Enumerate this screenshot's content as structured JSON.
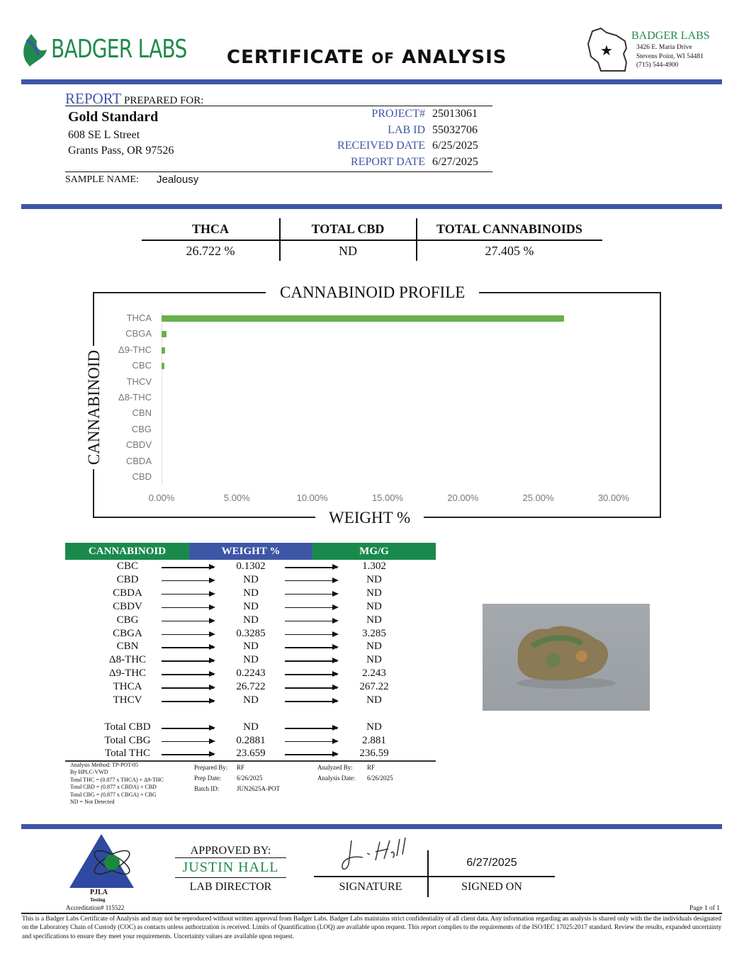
{
  "header": {
    "brand": "BADGER LABS",
    "title_a": "CERTIFICATE ",
    "title_of": "OF",
    "title_b": " ANALYSIS",
    "lab_name": "BADGER LABS",
    "lab_address1": "3426 E. Maria Drive",
    "lab_address2": "Stevens Point, WI 54481",
    "lab_phone": "(715) 544-4900"
  },
  "report": {
    "report_word": "REPORT",
    "prepared_for": " PREPARED FOR:",
    "client_name": "Gold Standard",
    "client_address1": "608 SE L Street",
    "client_address2": "Grants Pass, OR 97526",
    "fields": [
      {
        "label": "PROJECT#",
        "value": "25013061"
      },
      {
        "label": "LAB ID",
        "value": "55032706"
      },
      {
        "label": "RECEIVED DATE",
        "value": "6/25/2025"
      },
      {
        "label": "REPORT DATE",
        "value": "6/27/2025"
      }
    ],
    "sample_label": "SAMPLE NAME:",
    "sample_name": "Jealousy"
  },
  "summary": {
    "headers": [
      "THCA",
      "TOTAL CBD",
      "TOTAL CANNABINOIDS"
    ],
    "values": [
      "26.722 %",
      "ND",
      "27.405 %"
    ]
  },
  "chart_data": {
    "type": "bar",
    "orientation": "horizontal",
    "title": "CANNABINOID PROFILE",
    "xlabel": "WEIGHT %",
    "ylabel": "CANNABINOID",
    "categories": [
      "THCA",
      "CBGA",
      "Δ9-THC",
      "CBC",
      "THCV",
      "Δ8-THC",
      "CBN",
      "CBG",
      "CBDV",
      "CBDA",
      "CBD"
    ],
    "values": [
      26.722,
      0.3285,
      0.2243,
      0.1302,
      0,
      0,
      0,
      0,
      0,
      0,
      0
    ],
    "xlim": [
      0,
      30
    ],
    "xticks": [
      "0.00%",
      "5.00%",
      "10.00%",
      "15.00%",
      "20.00%",
      "25.00%",
      "30.00%"
    ],
    "grid": false,
    "color": "#6ab04c"
  },
  "table": {
    "headers": [
      "CANNABINOID",
      "WEIGHT %",
      "MG/G"
    ],
    "header_colors": [
      "#1a8a4c",
      "#3d56a6",
      "#1a8a4c"
    ],
    "rows": [
      [
        "CBC",
        "0.1302",
        "1.302"
      ],
      [
        "CBD",
        "ND",
        "ND"
      ],
      [
        "CBDA",
        "ND",
        "ND"
      ],
      [
        "CBDV",
        "ND",
        "ND"
      ],
      [
        "CBG",
        "ND",
        "ND"
      ],
      [
        "CBGA",
        "0.3285",
        "3.285"
      ],
      [
        "CBN",
        "ND",
        "ND"
      ],
      [
        "Δ8-THC",
        "ND",
        "ND"
      ],
      [
        "Δ9-THC",
        "0.2243",
        "2.243"
      ],
      [
        "THCA",
        "26.722",
        "267.22"
      ],
      [
        "THCV",
        "ND",
        "ND"
      ]
    ],
    "totals": [
      [
        "Total CBD",
        "ND",
        "ND"
      ],
      [
        "Total CBG",
        "0.2881",
        "2.881"
      ],
      [
        "Total THC",
        "23.659",
        "236.59"
      ]
    ]
  },
  "notes": {
    "method": [
      "Analysis Method: TP-POT-05",
      "By HPLC-VWD",
      "Total THC = (0.877 x  THCA) + Δ9-THC",
      "Total CBD = (0.877 x  CBDA) + CBD",
      "Total CBG = (0.877 x  CBGA) + CBG",
      "ND = Not Detected"
    ],
    "prep": [
      {
        "label": "Prepared By:",
        "value": "RF"
      },
      {
        "label": "Prep Date:",
        "value": "6/26/2025"
      },
      {
        "label": "Batch ID:",
        "value": "JUN2625A-POT"
      }
    ],
    "analysis": [
      {
        "label": "Analyzed By:",
        "value": "RF"
      },
      {
        "label": "Analysis Date:",
        "value": "6/26/2025"
      }
    ]
  },
  "approval": {
    "pjla": "PJLA",
    "testing": "Testing",
    "accreditation": "Accreditation# 115522",
    "approved_by": "APPROVED BY:",
    "name": "JUSTIN HALL",
    "role": "LAB DIRECTOR",
    "signature_label": "SIGNATURE",
    "signed_date": "6/27/2025",
    "signed_on_label": "SIGNED ON"
  },
  "footer": {
    "page": "Page 1 of 1",
    "disclaimer": "This is a Badger Labs Certificate of Analysis and may not be reproduced without written approval from Badger Labs. Badger Labs maintains strict confidentiality of all client data. Any information regarding an analysis is shared only with the the individuals designated on the Laboratory Chain of Custody (COC) as contacts unless authorization is received. Limits of Quantification (LOQ) are available upon request. This report complies to the requirements of the ISO/IEC 17025:2017 standard. Review the results, expanded uncertainty and specifications to ensure they meet your requirements. Uncertainty values are available upon request."
  }
}
